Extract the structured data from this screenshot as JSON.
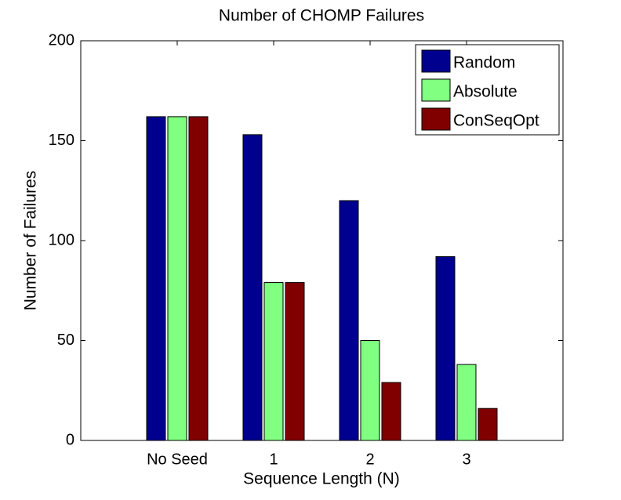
{
  "chart_data": {
    "type": "bar",
    "title": "Number of CHOMP Failures",
    "x_label": "Sequence Length (N)",
    "y_label": "Number of Failures",
    "categories": [
      "No Seed",
      "1",
      "2",
      "3"
    ],
    "series": [
      {
        "name": "Random",
        "color": "#00008f",
        "values": [
          162,
          153,
          120,
          92
        ]
      },
      {
        "name": "Absolute",
        "color": "#80ff80",
        "values": [
          162,
          79,
          50,
          38
        ]
      },
      {
        "name": "ConSeqOpt",
        "color": "#800000",
        "values": [
          162,
          79,
          29,
          16
        ]
      }
    ],
    "ylim": [
      0,
      200
    ],
    "yticks": [
      0,
      50,
      100,
      150,
      200
    ],
    "grid": false,
    "legend": "upper right"
  }
}
